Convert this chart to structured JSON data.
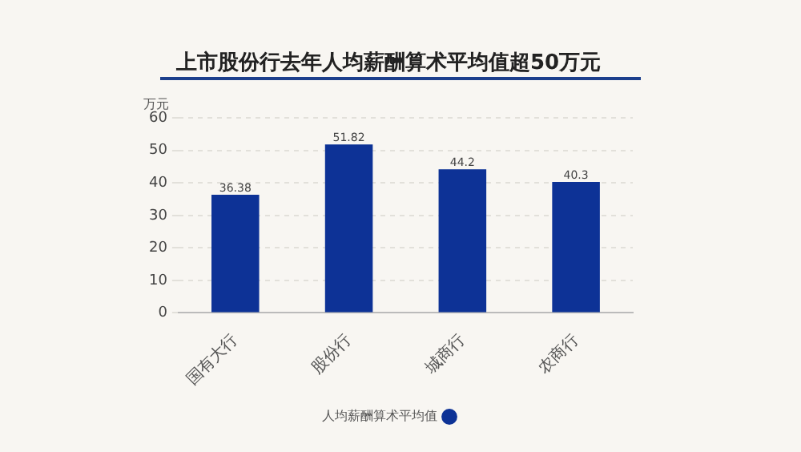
{
  "chart_data": {
    "type": "bar",
    "title": "上市股份行去年人均薪酬算术平均值超50万元",
    "ylabel": "万元",
    "categories": [
      "国有大行",
      "股份行",
      "城商行",
      "农商行"
    ],
    "series": [
      {
        "name": "人均薪酬算术平均值",
        "color": "#0d3296",
        "values": [
          36.38,
          51.82,
          44.2,
          40.3
        ]
      }
    ],
    "ylim": [
      0,
      60
    ],
    "yticks": [
      0,
      10,
      20,
      30,
      40,
      50,
      60
    ],
    "grid": "y",
    "legend": "bottom",
    "data_labels": true
  }
}
